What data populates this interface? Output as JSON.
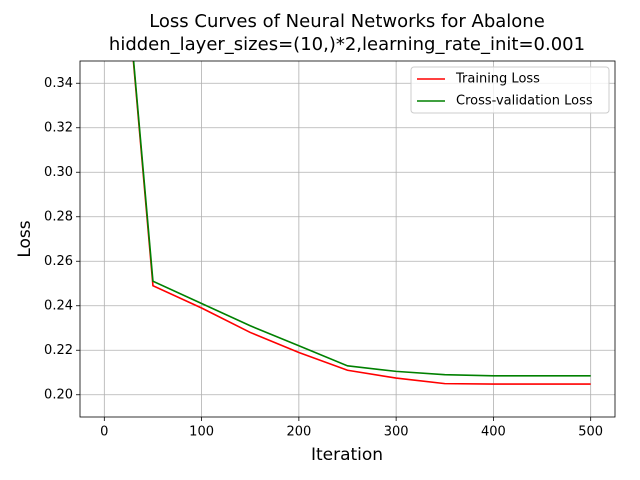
{
  "chart_data": {
    "type": "line",
    "title": "Loss Curves of Neural Networks for Abalone",
    "subtitle": "hidden_layer_sizes=(10,)*2,learning_rate_init=0.001",
    "x_label": "Iteration",
    "y_label": "Loss",
    "x": [
      0,
      50,
      100,
      150,
      200,
      250,
      300,
      350,
      400,
      450,
      500
    ],
    "series": [
      {
        "name": "Training Loss",
        "color": "#ff0000",
        "values": [
          0.5,
          0.249,
          0.239,
          0.228,
          0.219,
          0.211,
          0.2075,
          0.205,
          0.2048,
          0.2048,
          0.2048
        ]
      },
      {
        "name": "Cross-validation Loss",
        "color": "#008000",
        "values": [
          0.5,
          0.251,
          0.241,
          0.231,
          0.222,
          0.213,
          0.2105,
          0.209,
          0.2085,
          0.2085,
          0.2085
        ]
      }
    ],
    "xlim": [
      -25,
      525
    ],
    "ylim": [
      0.19,
      0.35
    ],
    "xticks": [
      0,
      100,
      200,
      300,
      400,
      500
    ],
    "yticks": [
      {
        "value": 0.2,
        "label": "0.20"
      },
      {
        "value": 0.22,
        "label": "0.22"
      },
      {
        "value": 0.24,
        "label": "0.24"
      },
      {
        "value": 0.26,
        "label": "0.26"
      },
      {
        "value": 0.28,
        "label": "0.28"
      },
      {
        "value": 0.3,
        "label": "0.30"
      },
      {
        "value": 0.32,
        "label": "0.32"
      },
      {
        "value": 0.34,
        "label": "0.34"
      }
    ],
    "grid": true,
    "legend": "upper-right"
  }
}
